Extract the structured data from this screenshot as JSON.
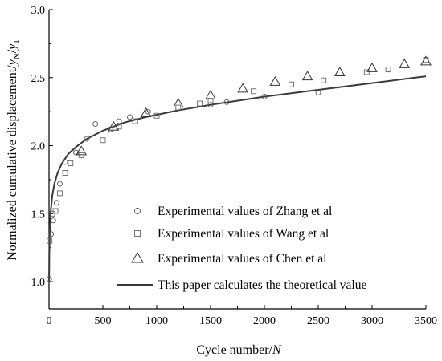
{
  "chart_data": {
    "type": "scatter",
    "xlabel": "Cycle number/",
    "xlabel_var": "N",
    "ylabel_prefix": "Normalized cumulative displacement/",
    "ylabel_num": "y",
    "ylabel_num_sub": "N",
    "ylabel_slash": "/",
    "ylabel_den": "y",
    "ylabel_den_sub": "1",
    "xlim": [
      0,
      3500
    ],
    "ylim": [
      0.8,
      3.0
    ],
    "x_ticks": [
      0,
      500,
      1000,
      1500,
      2000,
      2500,
      3000,
      3500
    ],
    "x_tick_labels": [
      "0",
      "500",
      "1000",
      "1500",
      "2000",
      "2500",
      "3000",
      "3500"
    ],
    "y_ticks": [
      1.0,
      1.5,
      2.0,
      2.5,
      3.0
    ],
    "y_tick_labels": [
      "1.0",
      "1.5",
      "2.0",
      "2.5",
      "3.0"
    ],
    "grid": false,
    "legend_position": "bottom-center",
    "series": [
      {
        "name": "Experimental values of Zhang et al",
        "marker": "circle",
        "points": [
          [
            1,
            1.02
          ],
          [
            20,
            1.35
          ],
          [
            40,
            1.45
          ],
          [
            70,
            1.58
          ],
          [
            100,
            1.72
          ],
          [
            150,
            1.88
          ],
          [
            250,
            1.95
          ],
          [
            350,
            2.05
          ],
          [
            430,
            2.16
          ],
          [
            570,
            2.12
          ],
          [
            650,
            2.18
          ],
          [
            750,
            2.21
          ],
          [
            920,
            2.25
          ],
          [
            1500,
            2.3
          ],
          [
            1650,
            2.32
          ],
          [
            2000,
            2.36
          ],
          [
            2500,
            2.39
          ]
        ]
      },
      {
        "name": "Experimental values of Wang et al",
        "marker": "square",
        "points": [
          [
            5,
            1.3
          ],
          [
            30,
            1.5
          ],
          [
            60,
            1.52
          ],
          [
            100,
            1.65
          ],
          [
            150,
            1.8
          ],
          [
            200,
            1.87
          ],
          [
            300,
            1.93
          ],
          [
            500,
            2.04
          ],
          [
            650,
            2.14
          ],
          [
            800,
            2.18
          ],
          [
            1000,
            2.22
          ],
          [
            1200,
            2.28
          ],
          [
            1400,
            2.31
          ],
          [
            1500,
            2.33
          ],
          [
            1900,
            2.4
          ],
          [
            2250,
            2.45
          ],
          [
            2550,
            2.48
          ],
          [
            2950,
            2.54
          ],
          [
            3150,
            2.56
          ],
          [
            3500,
            2.63
          ]
        ]
      },
      {
        "name": "Experimental values of Chen et al",
        "marker": "triangle",
        "points": [
          [
            300,
            1.96
          ],
          [
            600,
            2.14
          ],
          [
            900,
            2.24
          ],
          [
            1200,
            2.31
          ],
          [
            1500,
            2.37
          ],
          [
            1800,
            2.42
          ],
          [
            2100,
            2.47
          ],
          [
            2400,
            2.51
          ],
          [
            2700,
            2.54
          ],
          [
            3000,
            2.57
          ],
          [
            3300,
            2.6
          ],
          [
            3500,
            2.62
          ]
        ]
      }
    ],
    "theory": {
      "name": "This paper calculates the theoretical value",
      "type": "line",
      "x": [
        1,
        3,
        8,
        15,
        30,
        50,
        80,
        120,
        180,
        250,
        350,
        500,
        700,
        900,
        1200,
        1500,
        2000,
        2500,
        3000,
        3500
      ],
      "y": [
        1.0,
        1.22,
        1.4,
        1.51,
        1.63,
        1.72,
        1.8,
        1.87,
        1.94,
        1.99,
        2.05,
        2.11,
        2.17,
        2.21,
        2.26,
        2.3,
        2.36,
        2.41,
        2.46,
        2.51
      ]
    }
  }
}
